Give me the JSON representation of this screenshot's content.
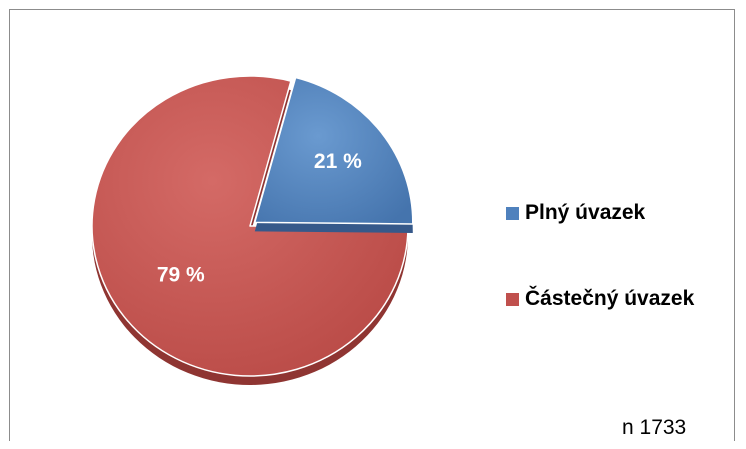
{
  "chart_data": {
    "type": "pie",
    "categories": [
      "Plný úvazek",
      "Částečný úvazek"
    ],
    "values": [
      21,
      79
    ],
    "data_labels": [
      "21 %",
      "79 %"
    ],
    "colors": [
      "#4f81bd",
      "#c0504d"
    ],
    "legend_position": "right",
    "exploded_slice": "Plný úvazek",
    "note": "n 1733"
  }
}
